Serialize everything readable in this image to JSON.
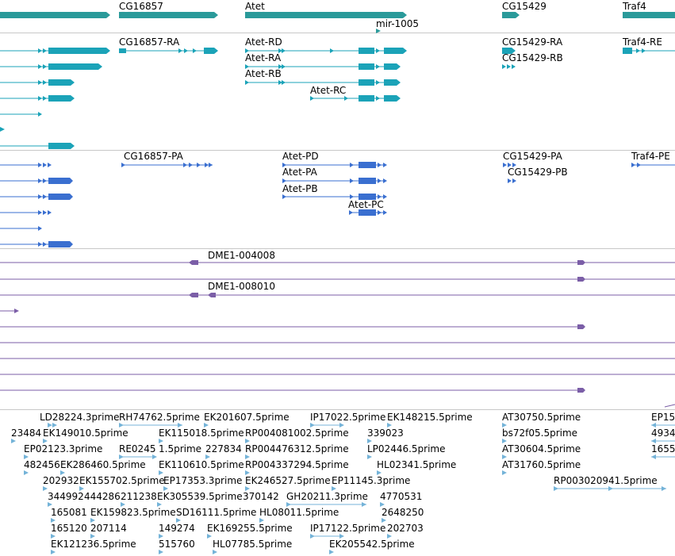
{
  "colors": {
    "gene": "#2a9a9a",
    "transcript": "#1ba3b8",
    "protein": "#3a6fd0",
    "cdna": "#7b5ea7",
    "est": "#74b3d8",
    "separator": "#c8c8c8",
    "text": "#000000"
  },
  "tracks": {
    "genes": {
      "labels": [
        "CG16857",
        "Atet",
        "mir-1005",
        "CG15429",
        "Traf4"
      ]
    },
    "transcripts": {
      "labels": [
        "CG16857-RA",
        "Atet-RD",
        "Atet-RA",
        "Atet-RB",
        "Atet-RC",
        "CG15429-RA",
        "CG15429-RB",
        "Traf4-RE"
      ]
    },
    "proteins": {
      "labels": [
        "CG16857-PA",
        "Atet-PD",
        "Atet-PA",
        "Atet-PB",
        "Atet-PC",
        "CG15429-PA",
        "CG15429-PB",
        "Traf4-PE"
      ]
    },
    "cdna": {
      "labels": [
        "DME1-004008",
        "DME1-008010"
      ]
    },
    "est": {
      "labels": [
        "LD28224.3prime",
        "RH74762.5prime",
        "EK201607.5prime",
        "IP17022.5prime",
        "EK148215.5prime",
        "AT30750.5prime",
        "EP15",
        "23484",
        "EK149010.5prime",
        "EK115018.5prime",
        "RP004081002.5prime",
        "339023",
        "bs72f05.5prime",
        "4934",
        "EP02123.3prime",
        "RE0245",
        "1.5prime",
        "227834",
        "RP004476312.5prime",
        "LP02446.5prime",
        "AT30604.5prime",
        "1655",
        "482456",
        "EK286460.5prime",
        "EK110610.5prime",
        "RP004337294.5prime",
        "HL02341.5prime",
        "AT31760.5prime",
        "202932",
        "EK155702.5prime",
        "EP17353.3prime",
        "EK246527.5prime",
        "EP11145.3prime",
        "RP003020941.5prime",
        "344992",
        "444286",
        "211238",
        "EK305539.5prime",
        "370142",
        "GH20211.3prime",
        "4770531",
        "165081",
        "EK159823.5prime",
        "SD16111.5prime",
        "HL08011.5prime",
        "2648250",
        "165120",
        "207114",
        "149274",
        "EK169255.5prime",
        "IP17122.5prime",
        "202703",
        "EK121236.5prime",
        "515760",
        "HL07785.5prime",
        "EK205542.5prime"
      ]
    }
  }
}
